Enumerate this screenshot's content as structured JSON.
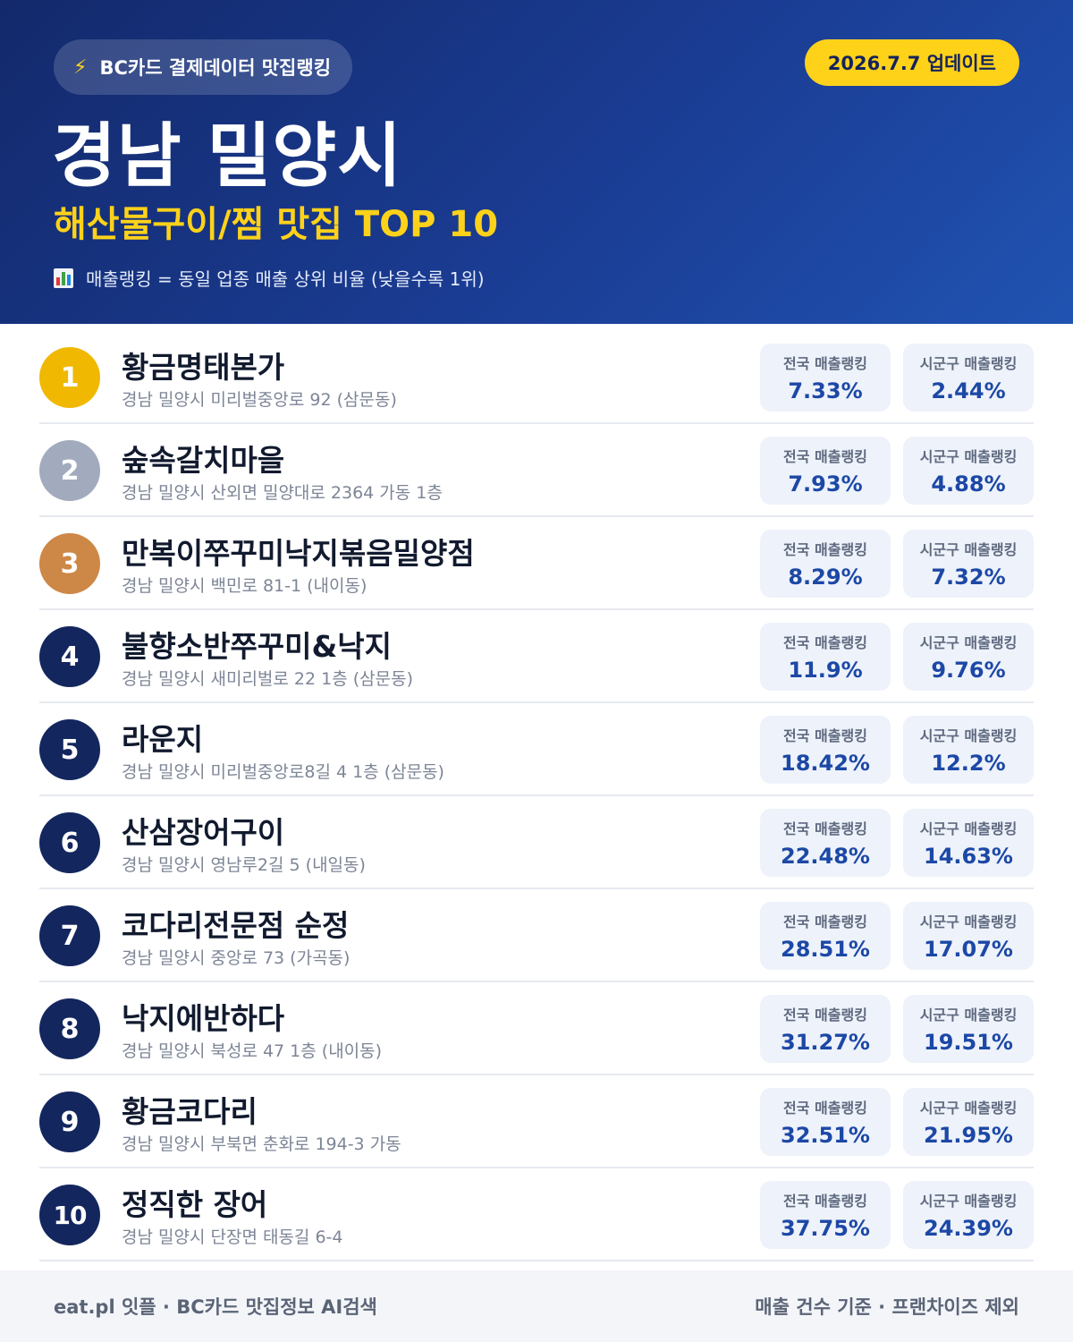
{
  "header": {
    "pill_label": "BC카드 결제데이터 맛집랭킹",
    "pill_icon": "lightning-icon",
    "date_badge": "2026.7.7 업데이트",
    "city": "경남 밀양시",
    "subtitle": "해산물구이/찜 맛집 TOP 10",
    "note_icon": "bar-chart-icon",
    "note": "매출랭킹 = 동일 업종 매출 상위 비율 (낮을수록 1위)"
  },
  "colors": {
    "header_start": "#13296b",
    "header_end": "#2053b2",
    "accent_yellow": "#ffd21a",
    "rank_gold": "#f0b800",
    "rank_silver": "#a2abbd",
    "rank_bronze": "#cd8746",
    "rank_default": "#13265e",
    "stat_value": "#1c48a6"
  },
  "stat_labels": {
    "national": "전국 매출랭킹",
    "local": "시군구 매출랭킹"
  },
  "restaurants": [
    {
      "rank": "1",
      "name": "황금명태본가",
      "address": "경남 밀양시 미리벌중앙로 92 (삼문동)",
      "national": "7.33%",
      "local": "2.44%"
    },
    {
      "rank": "2",
      "name": "숲속갈치마을",
      "address": "경남 밀양시 산외면 밀양대로 2364 가동 1층",
      "national": "7.93%",
      "local": "4.88%"
    },
    {
      "rank": "3",
      "name": "만복이쭈꾸미낙지볶음밀양점",
      "address": "경남 밀양시 백민로 81-1 (내이동)",
      "national": "8.29%",
      "local": "7.32%"
    },
    {
      "rank": "4",
      "name": "불향소반쭈꾸미&낙지",
      "address": "경남 밀양시 새미리벌로 22 1층 (삼문동)",
      "national": "11.9%",
      "local": "9.76%"
    },
    {
      "rank": "5",
      "name": "라운지",
      "address": "경남 밀양시 미리벌중앙로8길 4 1층 (삼문동)",
      "national": "18.42%",
      "local": "12.2%"
    },
    {
      "rank": "6",
      "name": "산삼장어구이",
      "address": "경남 밀양시 영남루2길 5 (내일동)",
      "national": "22.48%",
      "local": "14.63%"
    },
    {
      "rank": "7",
      "name": "코다리전문점 순정",
      "address": "경남 밀양시 중앙로 73 (가곡동)",
      "national": "28.51%",
      "local": "17.07%"
    },
    {
      "rank": "8",
      "name": "낙지에반하다",
      "address": "경남 밀양시 북성로 47 1층 (내이동)",
      "national": "31.27%",
      "local": "19.51%"
    },
    {
      "rank": "9",
      "name": "황금코다리",
      "address": "경남 밀양시 부북면 춘화로 194-3 가동",
      "national": "32.51%",
      "local": "21.95%"
    },
    {
      "rank": "10",
      "name": "정직한 장어",
      "address": "경남 밀양시 단장면 태동길 6-4",
      "national": "37.75%",
      "local": "24.39%"
    }
  ],
  "footer": {
    "left": "eat.pl 잇플 · BC카드 맛집정보 AI검색",
    "right": "매출 건수 기준 · 프랜차이즈 제외"
  }
}
